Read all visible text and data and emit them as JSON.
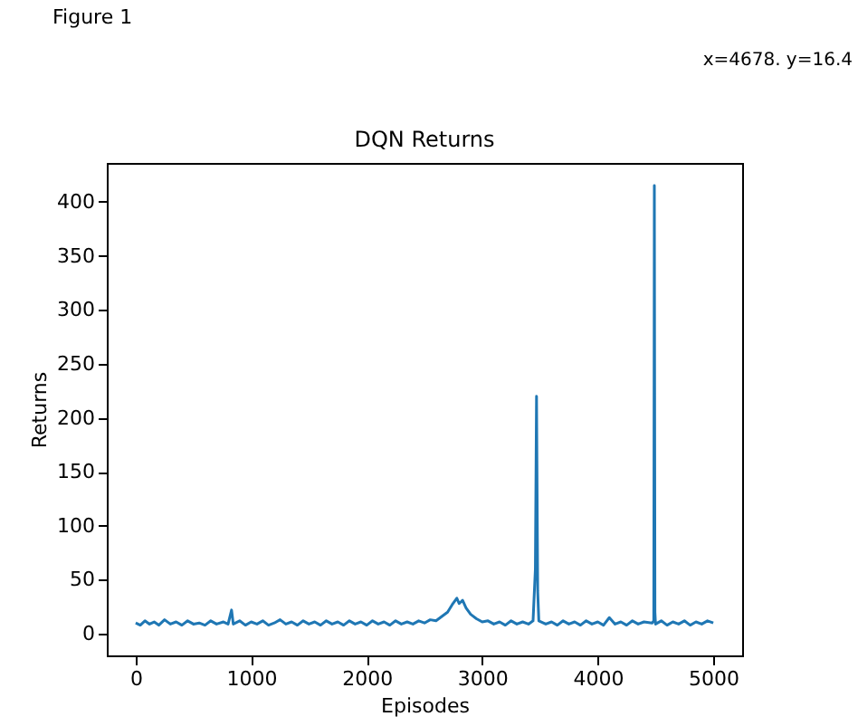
{
  "chart_data": {
    "type": "line",
    "title": "DQN Returns",
    "xlabel": "Episodes",
    "ylabel": "Returns",
    "annotations": [
      "Figure 1",
      "x=4678. y=16.4"
    ],
    "x": [
      0,
      40,
      80,
      120,
      160,
      200,
      250,
      300,
      350,
      400,
      450,
      500,
      550,
      600,
      650,
      700,
      760,
      800,
      830,
      845,
      900,
      950,
      1000,
      1050,
      1100,
      1150,
      1200,
      1250,
      1300,
      1350,
      1400,
      1450,
      1500,
      1550,
      1600,
      1650,
      1700,
      1750,
      1800,
      1850,
      1900,
      1950,
      2000,
      2050,
      2100,
      2150,
      2200,
      2250,
      2300,
      2350,
      2400,
      2450,
      2500,
      2550,
      2600,
      2650,
      2700,
      2740,
      2780,
      2800,
      2830,
      2860,
      2900,
      2950,
      3000,
      3050,
      3100,
      3150,
      3200,
      3250,
      3300,
      3350,
      3400,
      3440,
      3460,
      3470,
      3480,
      3490,
      3550,
      3600,
      3650,
      3700,
      3750,
      3800,
      3850,
      3900,
      3950,
      4000,
      4050,
      4100,
      4150,
      4200,
      4250,
      4300,
      4350,
      4400,
      4470,
      4485,
      4490,
      4495,
      4500,
      4550,
      4600,
      4650,
      4700,
      4750,
      4800,
      4850,
      4900,
      4950,
      5000
    ],
    "series": [
      {
        "color": "#1f77b4",
        "values": [
          10,
          8,
          12,
          9,
          11,
          8,
          13,
          9,
          11,
          8,
          12,
          9,
          10,
          8,
          12,
          9,
          11,
          9,
          22,
          9,
          12,
          8,
          11,
          9,
          12,
          8,
          10,
          13,
          9,
          11,
          8,
          12,
          9,
          11,
          8,
          12,
          9,
          11,
          8,
          12,
          9,
          11,
          8,
          12,
          9,
          11,
          8,
          12,
          9,
          11,
          9,
          12,
          10,
          13,
          12,
          16,
          20,
          27,
          33,
          28,
          31,
          24,
          18,
          14,
          11,
          12,
          9,
          11,
          8,
          12,
          9,
          11,
          9,
          12,
          60,
          220,
          40,
          12,
          9,
          11,
          8,
          12,
          9,
          11,
          8,
          12,
          9,
          11,
          8,
          15,
          9,
          11,
          8,
          12,
          9,
          11,
          10,
          12,
          415,
          20,
          9,
          12,
          8,
          11,
          9,
          12,
          8,
          11,
          9,
          12,
          10
        ]
      }
    ],
    "xlim": [
      -250,
      5250
    ],
    "ylim": [
      -20,
      436
    ],
    "xticks": [
      0,
      1000,
      2000,
      3000,
      4000,
      5000
    ],
    "yticks": [
      0,
      50,
      100,
      150,
      200,
      250,
      300,
      350,
      400
    ],
    "grid": false,
    "line_style": "solid",
    "marker": "none"
  }
}
